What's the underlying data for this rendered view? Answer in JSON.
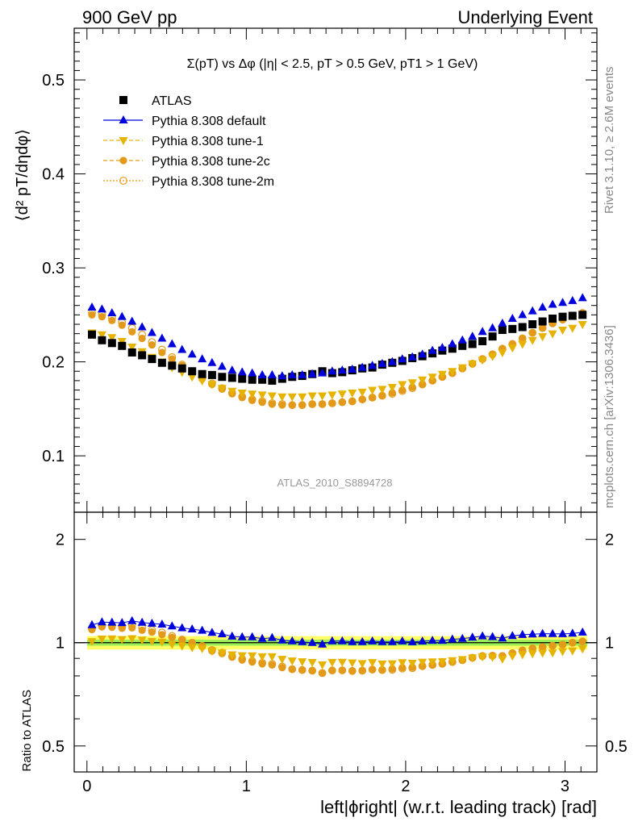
{
  "header": {
    "left": "900 GeV pp",
    "right": "Underlying Event"
  },
  "side_text": {
    "rivet": "Rivet 3.1.10, ≥ 2.6M events",
    "mcplots": "mcplots.cern.ch [arXiv:1306.3436]"
  },
  "chart_data": [
    {
      "type": "scatter",
      "title": "Σ(pT) vs Δφ (|η| < 2.5, pT > 0.5 GeV, pT1 > 1 GeV)",
      "ylabel": "⟨d² pT/dηdφ⟩",
      "xlabel": "left|ϕright| (w.r.t. leading track) [rad]",
      "watermark": "ATLAS_2010_S8894728",
      "ylim": [
        0.04,
        0.555
      ],
      "xlim": [
        -0.08,
        3.2
      ],
      "y_ticks": [
        0.1,
        0.2,
        0.3,
        0.4,
        0.5
      ],
      "y_tick_labels": [
        "0.1",
        "0.2",
        "0.3",
        "0.4",
        "0.5"
      ],
      "legend_position": "top-left",
      "x": [
        0.0314,
        0.0942,
        0.157,
        0.22,
        0.283,
        0.346,
        0.408,
        0.471,
        0.534,
        0.597,
        0.66,
        0.723,
        0.785,
        0.848,
        0.911,
        0.974,
        1.037,
        1.1,
        1.162,
        1.225,
        1.288,
        1.351,
        1.414,
        1.477,
        1.539,
        1.602,
        1.665,
        1.728,
        1.791,
        1.853,
        1.916,
        1.979,
        2.042,
        2.105,
        2.168,
        2.23,
        2.293,
        2.356,
        2.419,
        2.482,
        2.545,
        2.607,
        2.67,
        2.733,
        2.796,
        2.859,
        2.922,
        2.985,
        3.047,
        3.11
      ],
      "series": [
        {
          "name": "ATLAS",
          "color": "#000000",
          "marker": "square",
          "values": [
            0.229,
            0.223,
            0.22,
            0.217,
            0.21,
            0.207,
            0.203,
            0.199,
            0.196,
            0.193,
            0.19,
            0.187,
            0.186,
            0.184,
            0.183,
            0.182,
            0.181,
            0.181,
            0.18,
            0.182,
            0.184,
            0.185,
            0.187,
            0.19,
            0.188,
            0.189,
            0.191,
            0.193,
            0.194,
            0.197,
            0.199,
            0.201,
            0.204,
            0.206,
            0.209,
            0.212,
            0.214,
            0.217,
            0.219,
            0.222,
            0.227,
            0.234,
            0.235,
            0.237,
            0.24,
            0.243,
            0.246,
            0.248,
            0.249,
            0.25
          ]
        },
        {
          "name": "Pythia 8.308 default",
          "color": "#0000dd",
          "marker": "triangle-up",
          "values": [
            0.258,
            0.256,
            0.252,
            0.248,
            0.243,
            0.237,
            0.231,
            0.225,
            0.219,
            0.213,
            0.208,
            0.203,
            0.199,
            0.195,
            0.191,
            0.189,
            0.188,
            0.186,
            0.186,
            0.185,
            0.186,
            0.186,
            0.187,
            0.188,
            0.19,
            0.191,
            0.192,
            0.194,
            0.196,
            0.198,
            0.2,
            0.203,
            0.205,
            0.208,
            0.212,
            0.215,
            0.219,
            0.223,
            0.227,
            0.232,
            0.236,
            0.241,
            0.246,
            0.25,
            0.254,
            0.258,
            0.261,
            0.263,
            0.265,
            0.268
          ]
        },
        {
          "name": "Pythia 8.308 tune-1",
          "color": "#e6b400",
          "marker": "triangle-down",
          "values": [
            0.231,
            0.229,
            0.226,
            0.222,
            0.216,
            0.211,
            0.205,
            0.2,
            0.194,
            0.189,
            0.184,
            0.18,
            0.176,
            0.172,
            0.169,
            0.167,
            0.166,
            0.165,
            0.164,
            0.163,
            0.163,
            0.163,
            0.164,
            0.164,
            0.165,
            0.166,
            0.167,
            0.168,
            0.17,
            0.171,
            0.173,
            0.176,
            0.178,
            0.181,
            0.184,
            0.187,
            0.19,
            0.194,
            0.198,
            0.202,
            0.206,
            0.21,
            0.215,
            0.219,
            0.223,
            0.227,
            0.23,
            0.234,
            0.236,
            0.24
          ]
        },
        {
          "name": "Pythia 8.308 tune-2c",
          "color": "#e39a1a",
          "marker": "circle",
          "values": [
            0.25,
            0.248,
            0.244,
            0.239,
            0.232,
            0.225,
            0.218,
            0.21,
            0.203,
            0.196,
            0.189,
            0.182,
            0.176,
            0.171,
            0.166,
            0.162,
            0.159,
            0.157,
            0.155,
            0.154,
            0.154,
            0.154,
            0.155,
            0.155,
            0.156,
            0.157,
            0.158,
            0.16,
            0.162,
            0.164,
            0.167,
            0.17,
            0.173,
            0.176,
            0.18,
            0.184,
            0.188,
            0.193,
            0.198,
            0.203,
            0.208,
            0.214,
            0.219,
            0.225,
            0.231,
            0.236,
            0.241,
            0.245,
            0.249,
            0.252
          ]
        },
        {
          "name": "Pythia 8.308 tune-2m",
          "color": "#e39a1a",
          "marker": "circle-open",
          "values": [
            0.252,
            0.25,
            0.247,
            0.242,
            0.236,
            0.229,
            0.221,
            0.213,
            0.205,
            0.197,
            0.19,
            0.183,
            0.177,
            0.172,
            0.167,
            0.163,
            0.16,
            0.158,
            0.156,
            0.155,
            0.154,
            0.154,
            0.155,
            0.155,
            0.156,
            0.157,
            0.158,
            0.16,
            0.162,
            0.164,
            0.166,
            0.169,
            0.172,
            0.176,
            0.18,
            0.184,
            0.188,
            0.193,
            0.198,
            0.203,
            0.208,
            0.214,
            0.219,
            0.225,
            0.231,
            0.236,
            0.241,
            0.245,
            0.249,
            0.252
          ]
        }
      ]
    },
    {
      "type": "scatter",
      "ylabel": "Ratio to ATLAS",
      "xlabel": "left|ϕright| (w.r.t. leading track) [rad]",
      "scale": "log",
      "ylim": [
        0.42,
        2.4
      ],
      "xlim": [
        -0.08,
        3.2
      ],
      "y_ticks": [
        0.5,
        1,
        2
      ],
      "y_tick_labels": [
        "0.5",
        "1",
        "2"
      ],
      "x_ticks": [
        0,
        1,
        2,
        3
      ],
      "x_tick_labels": [
        "0",
        "1",
        "2",
        "3"
      ],
      "reference_line": 1.0,
      "band_colors": [
        "#ffff66",
        "#99ee55"
      ],
      "band_inner_half_width": 0.02,
      "band_outer_half_width": 0.045
    }
  ]
}
